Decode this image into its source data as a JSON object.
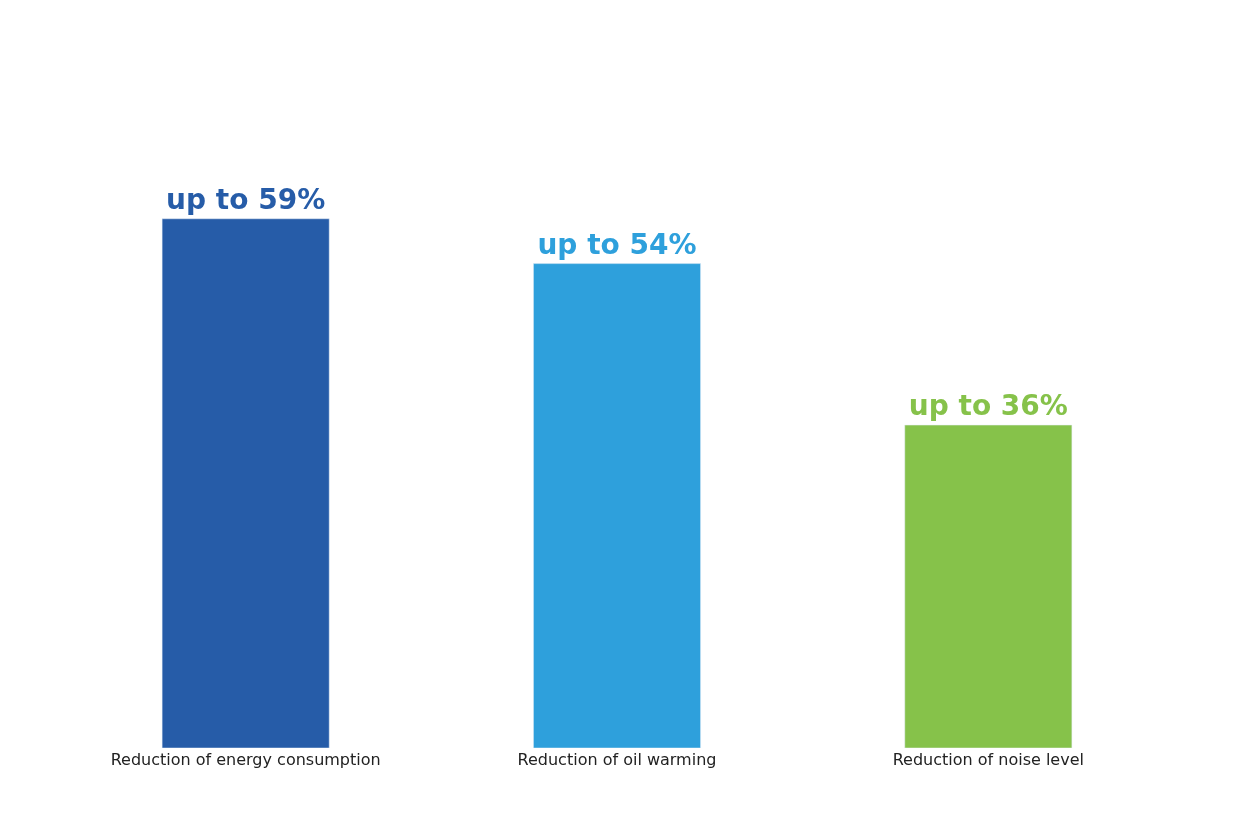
{
  "chart_data": {
    "type": "bar",
    "categories": [
      "Reduction of energy consumption",
      "Reduction of oil warming",
      "Reduction of noise level"
    ],
    "values": [
      59,
      54,
      36
    ],
    "colors": [
      "#265ca8",
      "#2ea0dc",
      "#86c24a"
    ],
    "value_labels": [
      "up to 59%",
      "up to 54%",
      "up to 36%"
    ],
    "legend": false
  }
}
